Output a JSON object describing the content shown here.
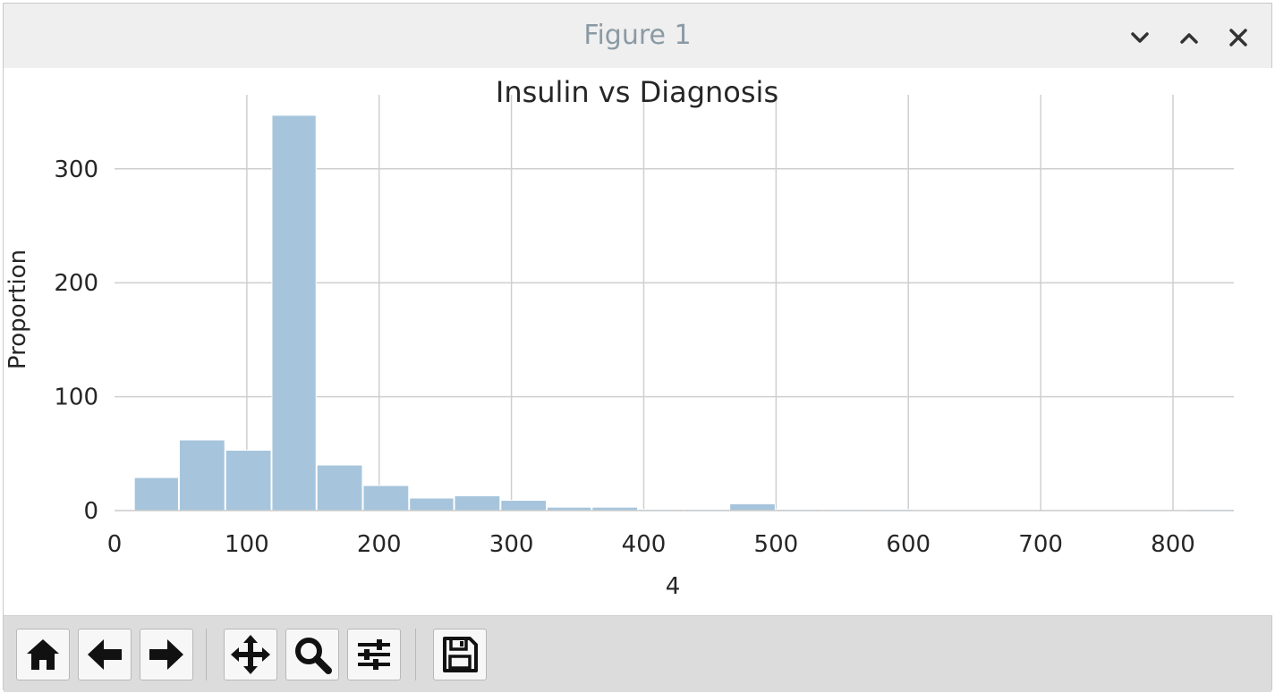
{
  "window": {
    "title": "Figure 1",
    "controls": [
      "minimize-icon",
      "maximize-icon",
      "close-icon"
    ]
  },
  "toolbar": {
    "buttons": [
      {
        "name": "home-button",
        "icon": "home-icon"
      },
      {
        "name": "back-button",
        "icon": "arrow-left-icon"
      },
      {
        "name": "forward-button",
        "icon": "arrow-right-icon"
      },
      {
        "name": "pan-button",
        "icon": "move-icon"
      },
      {
        "name": "zoom-button",
        "icon": "magnifier-icon"
      },
      {
        "name": "configure-subplots-button",
        "icon": "sliders-icon"
      },
      {
        "name": "save-button",
        "icon": "floppy-disk-icon"
      }
    ]
  },
  "chart_data": {
    "type": "bar",
    "title": "Insulin vs Diagnosis",
    "xlabel": "4",
    "ylabel": "Proportion",
    "xlim": [
      0,
      846
    ],
    "ylim": [
      0,
      365
    ],
    "x_ticks": [
      0,
      100,
      200,
      300,
      400,
      500,
      600,
      700,
      800
    ],
    "y_ticks": [
      0,
      100,
      200,
      300
    ],
    "grid": true,
    "bar_color": "#a6c5dc",
    "bins": [
      {
        "x0": 15,
        "x1": 48,
        "value": 29
      },
      {
        "x0": 49,
        "x1": 83,
        "value": 62
      },
      {
        "x0": 84,
        "x1": 118,
        "value": 53
      },
      {
        "x0": 119,
        "x1": 152,
        "value": 347
      },
      {
        "x0": 153,
        "x1": 187,
        "value": 40
      },
      {
        "x0": 188,
        "x1": 222,
        "value": 22
      },
      {
        "x0": 223,
        "x1": 256,
        "value": 11
      },
      {
        "x0": 257,
        "x1": 291,
        "value": 13
      },
      {
        "x0": 292,
        "x1": 326,
        "value": 9
      },
      {
        "x0": 327,
        "x1": 360,
        "value": 3
      },
      {
        "x0": 361,
        "x1": 395,
        "value": 3
      },
      {
        "x0": 396,
        "x1": 430,
        "value": 1
      },
      {
        "x0": 431,
        "x1": 464,
        "value": 1
      },
      {
        "x0": 465,
        "x1": 499,
        "value": 6
      },
      {
        "x0": 500,
        "x1": 534,
        "value": 1
      },
      {
        "x0": 535,
        "x1": 568,
        "value": 1
      },
      {
        "x0": 569,
        "x1": 603,
        "value": 1
      },
      {
        "x0": 604,
        "x1": 638,
        "value": 0
      },
      {
        "x0": 639,
        "x1": 672,
        "value": 0
      },
      {
        "x0": 673,
        "x1": 707,
        "value": 0
      },
      {
        "x0": 708,
        "x1": 742,
        "value": 0
      },
      {
        "x0": 743,
        "x1": 776,
        "value": 0
      },
      {
        "x0": 777,
        "x1": 811,
        "value": 0
      },
      {
        "x0": 812,
        "x1": 846,
        "value": 1
      }
    ]
  }
}
